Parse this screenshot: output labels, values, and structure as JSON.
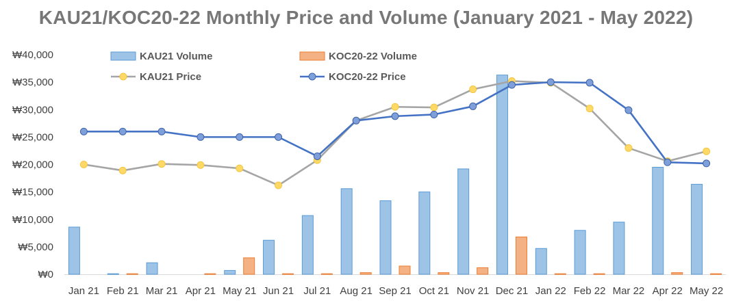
{
  "chart_data": {
    "type": "bar",
    "title": "KAU21/KOC20-22 Monthly Price and Volume (January 2021 - May 2022)",
    "categories": [
      "Jan 21",
      "Feb 21",
      "Mar 21",
      "Apr 21",
      "May 21",
      "Jun 21",
      "Jul 21",
      "Aug 21",
      "Sep 21",
      "Oct 21",
      "Nov 21",
      "Dec 21",
      "Jan 22",
      "Feb 22",
      "Mar 22",
      "Apr 22",
      "May 22"
    ],
    "y_ticks": [
      "₩0",
      "₩5,000",
      "₩10,000",
      "₩15,000",
      "₩20,000",
      "₩25,000",
      "₩30,000",
      "₩35,000",
      "₩40,000"
    ],
    "ylim": [
      0,
      40000
    ],
    "legend_position": "top",
    "series": [
      {
        "name": "KAU21 Volume",
        "kind": "bar",
        "color": "#9DC3E6",
        "values": [
          8600,
          100,
          2100,
          0,
          700,
          6200,
          10700,
          15600,
          13400,
          15000,
          19200,
          36300,
          4700,
          8000,
          9500,
          19500,
          16400
        ]
      },
      {
        "name": "KOC20-22 Volume",
        "kind": "bar",
        "color": "#F4B183",
        "values": [
          0,
          100,
          0,
          100,
          3000,
          100,
          100,
          300,
          1500,
          300,
          1200,
          6800,
          100,
          100,
          0,
          300,
          100
        ]
      },
      {
        "name": "KAU21 Price",
        "kind": "line",
        "color": "#A5A5A5",
        "marker": "#FFD966",
        "values": [
          20000,
          18900,
          20100,
          19900,
          19300,
          16200,
          20800,
          28000,
          30500,
          30400,
          33700,
          35200,
          34900,
          30200,
          23000,
          20600,
          22400
        ]
      },
      {
        "name": "KOC20-22 Price",
        "kind": "line",
        "color": "#4472C4",
        "marker": "#7F9FDA",
        "values": [
          26000,
          26000,
          26000,
          25000,
          25000,
          25000,
          21500,
          28000,
          28800,
          29100,
          30600,
          34500,
          35000,
          34900,
          29900,
          20400,
          20200
        ]
      }
    ]
  }
}
